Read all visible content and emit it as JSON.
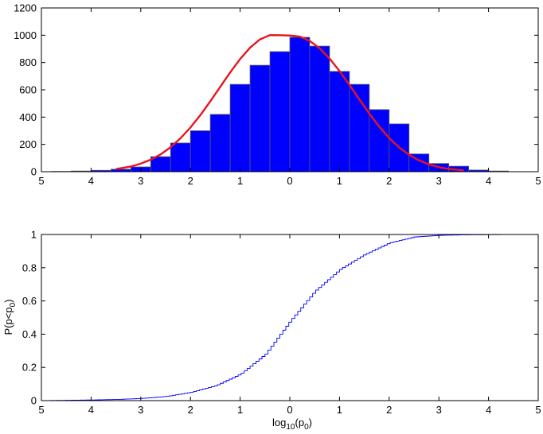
{
  "chart_data": [
    {
      "type": "bar",
      "title": "",
      "xlabel": "",
      "ylabel": "",
      "xlim": [
        -5,
        5
      ],
      "ylim": [
        0,
        1200
      ],
      "xticks": [
        -5,
        -4,
        -3,
        -2,
        -1,
        0,
        1,
        2,
        3,
        4,
        5
      ],
      "xtick_labels": [
        "5",
        "4",
        "3",
        "2",
        "1",
        "0",
        "1",
        "2",
        "3",
        "4",
        "5"
      ],
      "yticks": [
        0,
        200,
        400,
        600,
        800,
        1000,
        1200
      ],
      "ytick_labels": [
        "0",
        "200",
        "400",
        "600",
        "800",
        "1000",
        "1200"
      ],
      "bar_width": 0.4,
      "bar_color": "#0000ff",
      "bar_edge_color": "#5a5a5a",
      "categories": [
        -4.6,
        -4.2,
        -3.8,
        -3.4,
        -3.0,
        -2.6,
        -2.2,
        -1.8,
        -1.4,
        -1.0,
        -0.6,
        -0.2,
        0.2,
        0.6,
        1.0,
        1.4,
        1.8,
        2.2,
        2.6,
        3.0,
        3.4,
        3.8,
        4.2
      ],
      "values": [
        2,
        5,
        10,
        18,
        35,
        110,
        210,
        300,
        420,
        640,
        780,
        880,
        985,
        920,
        735,
        640,
        455,
        350,
        130,
        60,
        40,
        12,
        5
      ],
      "fit_curve": {
        "type": "line",
        "color": "#e8141e",
        "x": [
          -3.5,
          -3.2,
          -3.0,
          -2.8,
          -2.6,
          -2.4,
          -2.2,
          -2.0,
          -1.8,
          -1.6,
          -1.4,
          -1.2,
          -1.0,
          -0.8,
          -0.6,
          -0.4,
          -0.2,
          0.0,
          0.2,
          0.4,
          0.6,
          0.8,
          1.0,
          1.2,
          1.4,
          1.6,
          1.8,
          2.0,
          2.2,
          2.4,
          2.6,
          2.8,
          3.0,
          3.2,
          3.5
        ],
        "y": [
          19,
          38,
          59,
          88,
          127,
          179,
          245,
          324,
          415,
          516,
          622,
          728,
          826,
          909,
          970,
          1001,
          1000,
          998,
          990,
          959,
          904,
          829,
          738,
          636,
          530,
          426,
          330,
          247,
          178,
          124,
          83,
          54,
          33,
          20,
          10
        ]
      }
    },
    {
      "type": "line",
      "title": "",
      "xlabel": "log",
      "xlabel_sub1": "10",
      "xlabel_mid": "(p",
      "xlabel_sub2": "0",
      "xlabel_end": ")",
      "ylabel": "P(p<p",
      "ylabel_sub": "0",
      "ylabel_end": ")",
      "xlim": [
        -5,
        5
      ],
      "ylim": [
        0,
        1
      ],
      "xticks": [
        -5,
        -4,
        -3,
        -2,
        -1,
        0,
        1,
        2,
        3,
        4,
        5
      ],
      "xtick_labels": [
        "5",
        "4",
        "3",
        "2",
        "1",
        "0",
        "1",
        "2",
        "3",
        "4",
        "5"
      ],
      "yticks": [
        0,
        0.2,
        0.4,
        0.6,
        0.8,
        1
      ],
      "ytick_labels": [
        "0",
        "0.2",
        "0.4",
        "0.6",
        "0.8",
        "1"
      ],
      "line_color": "#0000ff",
      "x": [
        -5.0,
        -4.5,
        -4.0,
        -3.5,
        -3.0,
        -2.5,
        -2.0,
        -1.5,
        -1.0,
        -0.5,
        0.0,
        0.5,
        1.0,
        1.5,
        2.0,
        2.5,
        3.0,
        3.5,
        4.0,
        4.5
      ],
      "y": [
        0.0,
        0.002,
        0.004,
        0.007,
        0.013,
        0.025,
        0.05,
        0.09,
        0.16,
        0.28,
        0.48,
        0.66,
        0.79,
        0.88,
        0.95,
        0.985,
        0.995,
        0.998,
        0.999,
        1.0
      ]
    }
  ]
}
